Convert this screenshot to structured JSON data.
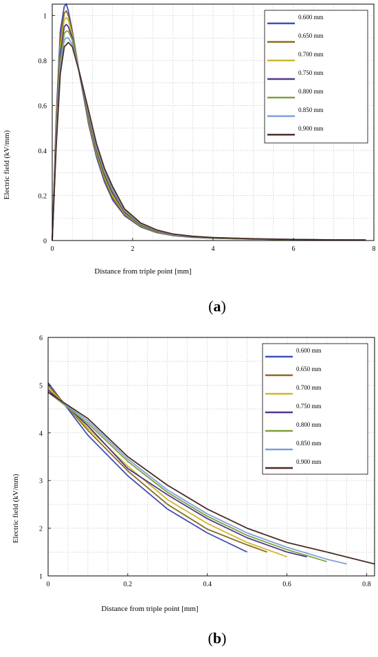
{
  "chart_data": [
    {
      "type": "line",
      "panel_label": "a",
      "xlabel": "Distance from triple point [mm]",
      "ylabel": "Electric field (kV/mm)",
      "xlim": [
        0,
        8
      ],
      "ylim": [
        0,
        1.05
      ],
      "xticks": [
        0,
        2,
        4,
        6,
        8
      ],
      "yticks": [
        0,
        0.2,
        0.4,
        0.6,
        0.8,
        1
      ],
      "grid": true,
      "legend_position": "top-right",
      "x": [
        0,
        0.1,
        0.2,
        0.3,
        0.35,
        0.4,
        0.5,
        0.7,
        0.9,
        1.1,
        1.3,
        1.5,
        1.8,
        2.2,
        2.6,
        3.0,
        3.5,
        4.0,
        5.0,
        6.0,
        7.0,
        7.8
      ],
      "series": [
        {
          "name": "0.600 mm",
          "color": "#3d4fb5",
          "values": [
            0,
            0.55,
            0.93,
            1.04,
            1.05,
            1.02,
            0.93,
            0.72,
            0.52,
            0.37,
            0.26,
            0.18,
            0.11,
            0.06,
            0.035,
            0.022,
            0.014,
            0.01,
            0.006,
            0.004,
            0.003,
            0.002
          ]
        },
        {
          "name": "0.650 mm",
          "color": "#8a6a1c",
          "values": [
            0,
            0.52,
            0.89,
            1.01,
            1.02,
            1.0,
            0.92,
            0.72,
            0.53,
            0.38,
            0.27,
            0.19,
            0.115,
            0.063,
            0.037,
            0.023,
            0.015,
            0.011,
            0.006,
            0.004,
            0.003,
            0.002
          ]
        },
        {
          "name": "0.700 mm",
          "color": "#c9b92a",
          "values": [
            0,
            0.5,
            0.86,
            0.98,
            0.99,
            0.98,
            0.91,
            0.72,
            0.54,
            0.39,
            0.28,
            0.2,
            0.12,
            0.066,
            0.039,
            0.024,
            0.016,
            0.011,
            0.007,
            0.004,
            0.003,
            0.002
          ]
        },
        {
          "name": "0.750 mm",
          "color": "#52348c",
          "values": [
            0,
            0.48,
            0.83,
            0.95,
            0.96,
            0.95,
            0.9,
            0.72,
            0.55,
            0.4,
            0.29,
            0.21,
            0.125,
            0.069,
            0.041,
            0.025,
            0.016,
            0.012,
            0.007,
            0.004,
            0.003,
            0.002
          ]
        },
        {
          "name": "0.800 mm",
          "color": "#7aa03a",
          "values": [
            0,
            0.46,
            0.8,
            0.92,
            0.93,
            0.93,
            0.89,
            0.73,
            0.56,
            0.41,
            0.3,
            0.22,
            0.13,
            0.072,
            0.043,
            0.026,
            0.017,
            0.012,
            0.007,
            0.004,
            0.003,
            0.002
          ]
        },
        {
          "name": "0.850 mm",
          "color": "#7d9fd9",
          "values": [
            0,
            0.44,
            0.77,
            0.89,
            0.9,
            0.9,
            0.87,
            0.73,
            0.57,
            0.42,
            0.31,
            0.23,
            0.135,
            0.075,
            0.045,
            0.027,
            0.018,
            0.013,
            0.008,
            0.005,
            0.003,
            0.002
          ]
        },
        {
          "name": "0.900 mm",
          "color": "#4a2a22",
          "values": [
            0,
            0.42,
            0.74,
            0.86,
            0.87,
            0.88,
            0.86,
            0.73,
            0.58,
            0.43,
            0.32,
            0.24,
            0.14,
            0.078,
            0.047,
            0.029,
            0.019,
            0.013,
            0.008,
            0.005,
            0.003,
            0.002
          ]
        }
      ]
    },
    {
      "type": "line",
      "panel_label": "b",
      "xlabel": "Distance from triple point [mm]",
      "ylabel": "Electric field (kV/mm)",
      "xlim": [
        0,
        0.82
      ],
      "ylim": [
        1,
        6
      ],
      "xticks": [
        0,
        0.2,
        0.4,
        0.6,
        0.8
      ],
      "yticks": [
        1,
        2,
        3,
        4,
        5,
        6
      ],
      "grid": true,
      "legend_position": "top-right",
      "series": [
        {
          "name": "0.600 mm",
          "color": "#3d4fb5",
          "x": [
            0,
            0.1,
            0.2,
            0.3,
            0.4,
            0.5
          ],
          "values": [
            5.05,
            3.95,
            3.1,
            2.4,
            1.9,
            1.5
          ]
        },
        {
          "name": "0.650 mm",
          "color": "#8a6a1c",
          "x": [
            0,
            0.1,
            0.2,
            0.3,
            0.4,
            0.5,
            0.55
          ],
          "values": [
            5.0,
            4.05,
            3.2,
            2.5,
            1.98,
            1.65,
            1.5
          ]
        },
        {
          "name": "0.700 mm",
          "color": "#c9b92a",
          "x": [
            0,
            0.1,
            0.2,
            0.3,
            0.4,
            0.5,
            0.6
          ],
          "values": [
            4.95,
            4.1,
            3.3,
            2.6,
            2.1,
            1.7,
            1.4
          ]
        },
        {
          "name": "0.750 mm",
          "color": "#52348c",
          "x": [
            0,
            0.1,
            0.2,
            0.3,
            0.4,
            0.5,
            0.6,
            0.65
          ],
          "values": [
            4.9,
            4.15,
            3.25,
            2.7,
            2.2,
            1.8,
            1.5,
            1.4
          ]
        },
        {
          "name": "0.800 mm",
          "color": "#7aa03a",
          "x": [
            0,
            0.1,
            0.2,
            0.3,
            0.4,
            0.5,
            0.6,
            0.7
          ],
          "values": [
            4.85,
            4.2,
            3.4,
            2.75,
            2.25,
            1.85,
            1.55,
            1.3
          ]
        },
        {
          "name": "0.850 mm",
          "color": "#7d9fd9",
          "x": [
            0,
            0.1,
            0.2,
            0.3,
            0.4,
            0.5,
            0.6,
            0.7,
            0.75
          ],
          "values": [
            4.85,
            4.25,
            3.45,
            2.8,
            2.3,
            1.9,
            1.6,
            1.35,
            1.25
          ]
        },
        {
          "name": "0.900 mm",
          "color": "#4a2a22",
          "x": [
            0,
            0.1,
            0.2,
            0.3,
            0.4,
            0.5,
            0.6,
            0.7,
            0.82
          ],
          "values": [
            4.85,
            4.3,
            3.5,
            2.9,
            2.4,
            2.0,
            1.7,
            1.5,
            1.25
          ]
        }
      ]
    }
  ]
}
